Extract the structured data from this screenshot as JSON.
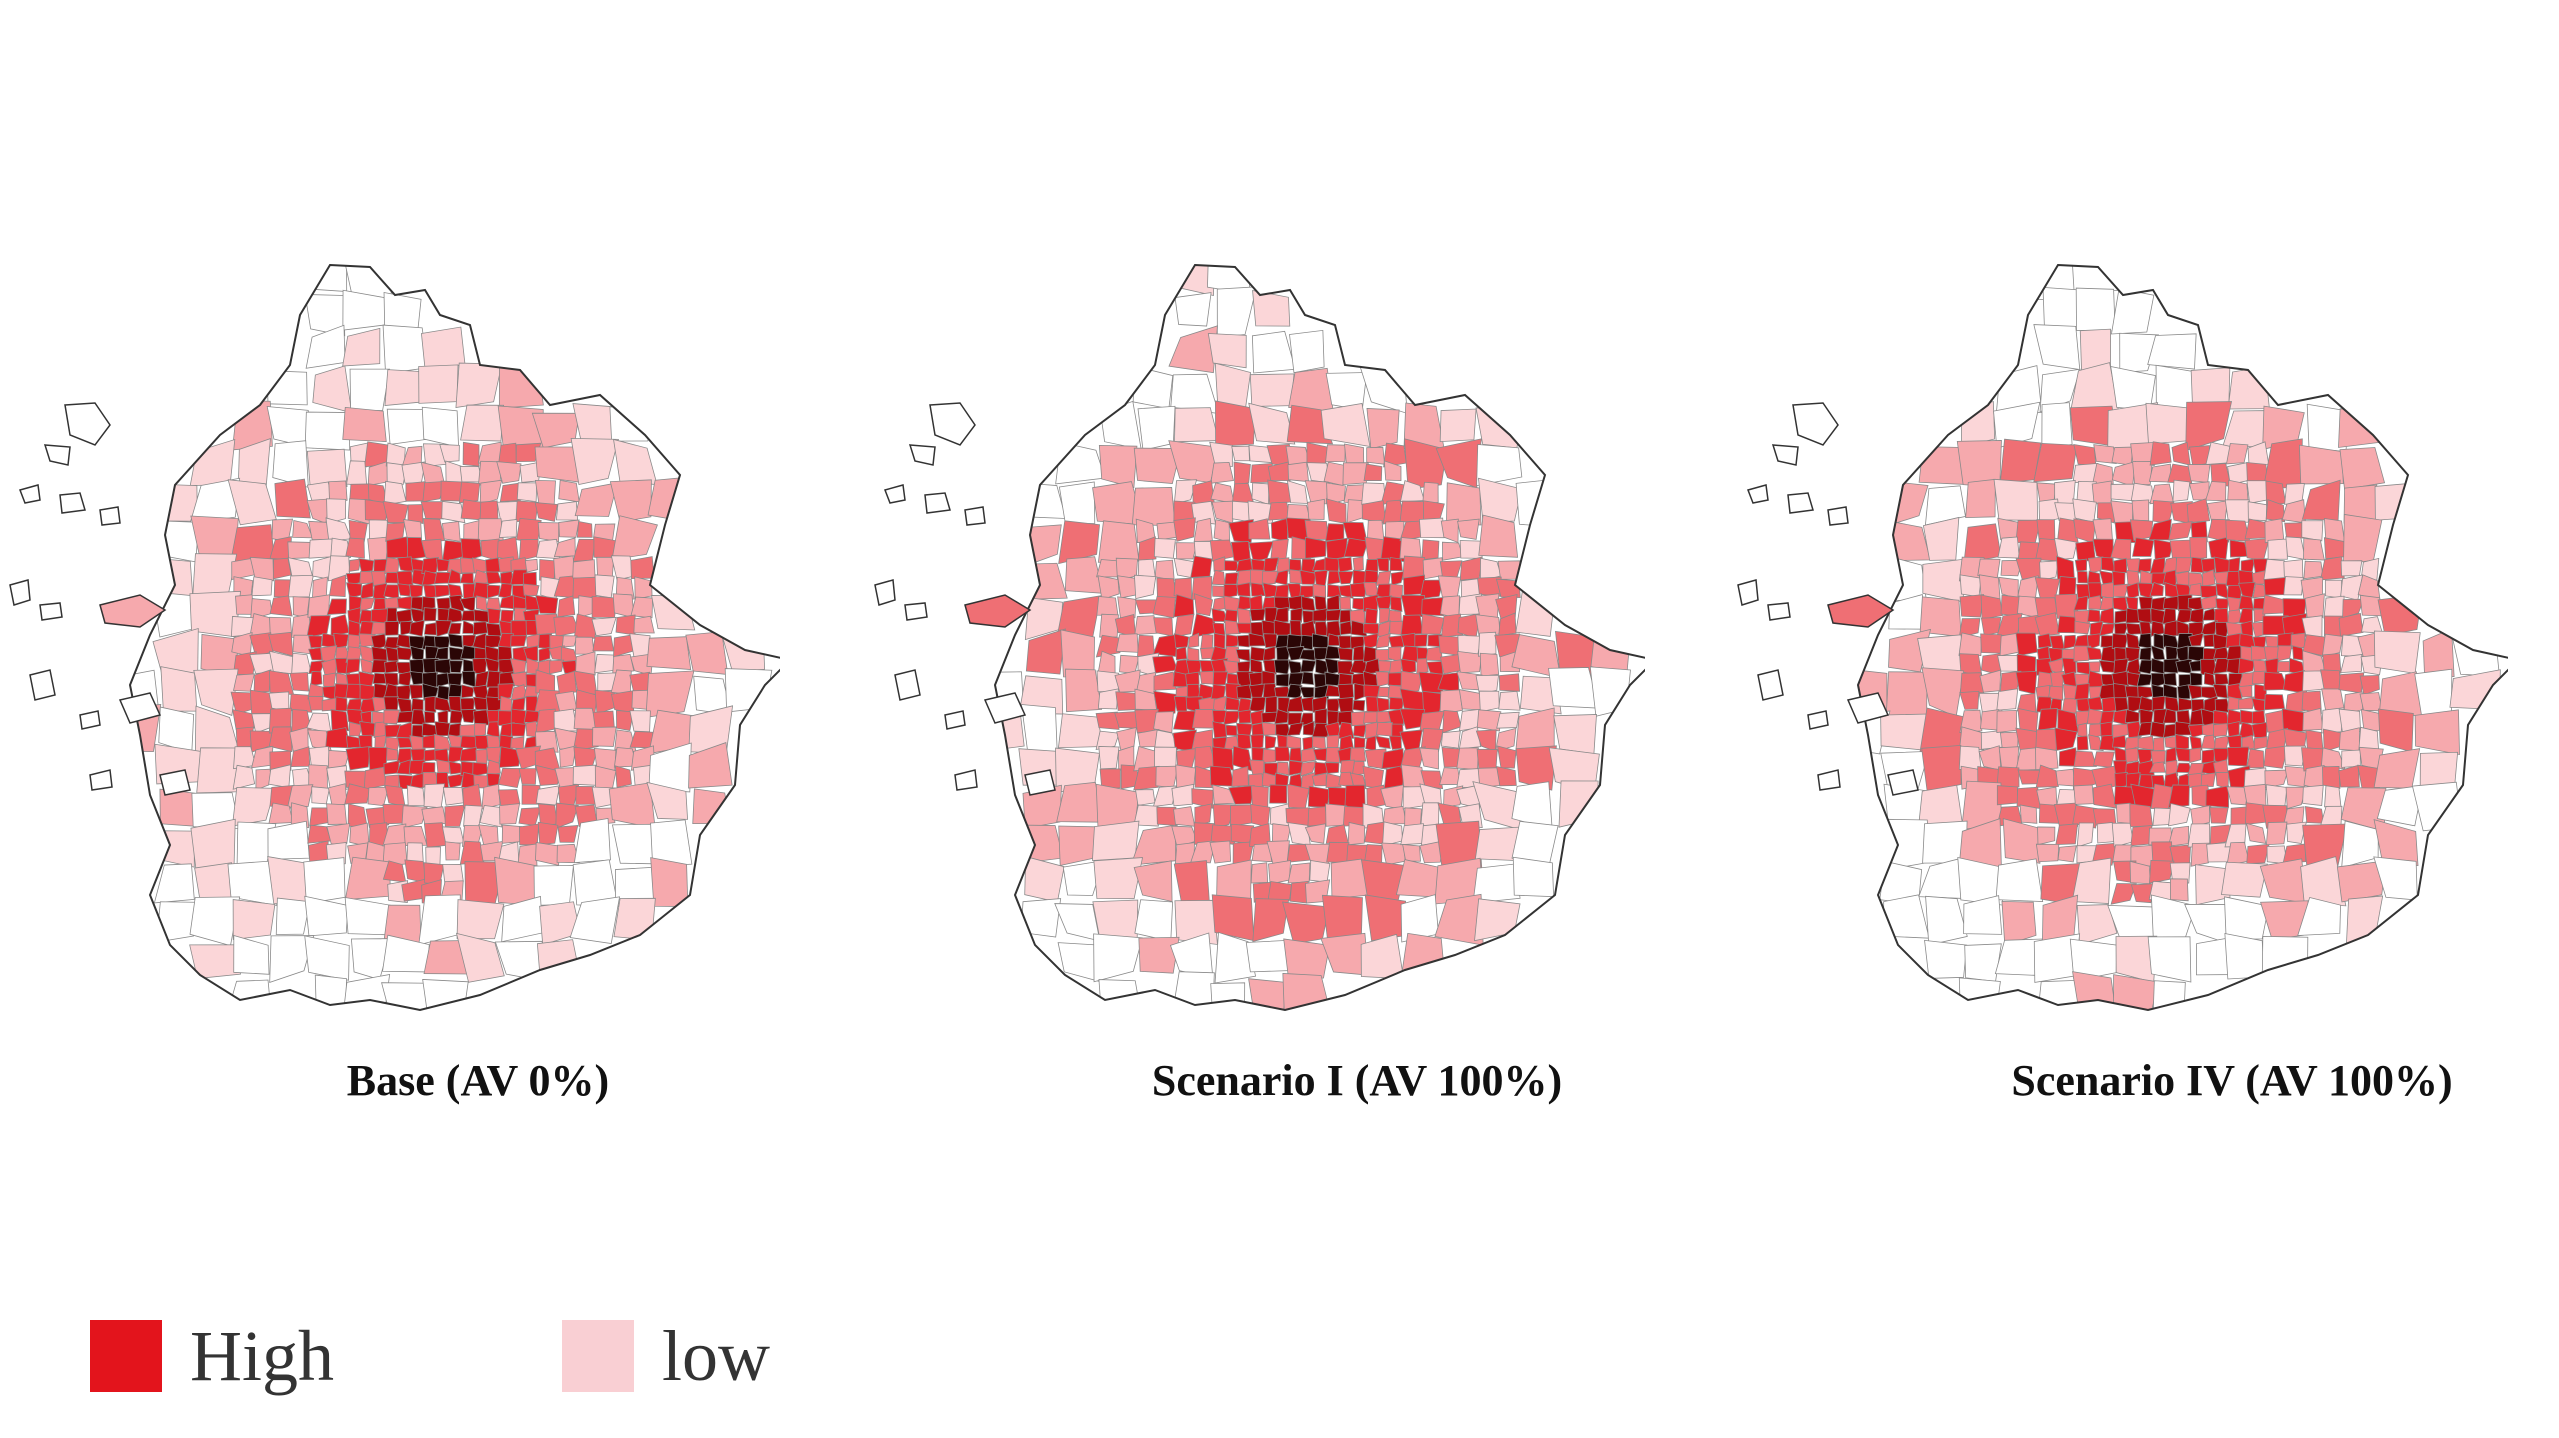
{
  "maps": [
    {
      "caption": "Base (AV 0%)",
      "variant": "base"
    },
    {
      "caption": "Scenario I (AV 100%)",
      "variant": "scenario1"
    },
    {
      "caption": "Scenario IV (AV 100%)",
      "variant": "scenario4"
    }
  ],
  "legend": [
    {
      "label": "High",
      "color": "#e3141c"
    },
    {
      "label": "low",
      "color": "#f9cfd3"
    }
  ],
  "colors": {
    "boundary": "#333333",
    "district_line": "#8a8a8a",
    "core": "#2b0606",
    "dark_red": "#b00d12",
    "red": "#e3262e",
    "medium": "#ef6f74",
    "light": "#f6a9ad",
    "faint": "#fbd6d8"
  }
}
